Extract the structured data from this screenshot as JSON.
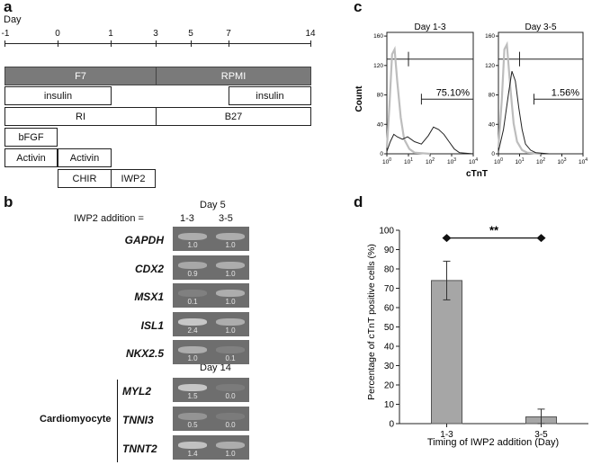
{
  "panel_a": {
    "letter": "a",
    "axis_label": "Day",
    "ticks": [
      "-1",
      "0",
      "1",
      "3",
      "5",
      "7",
      "14"
    ],
    "media": {
      "f7": "F7",
      "rpmi": "RPMI"
    },
    "insulin_early": "insulin",
    "insulin_late": "insulin",
    "ri": "RI",
    "b27": "B27",
    "bfgf": "bFGF",
    "activin_1": "Activin",
    "activin_2": "Activin",
    "chir": "CHIR",
    "iwp2": "IWP2"
  },
  "panel_b": {
    "letter": "b",
    "day5_label": "Day 5",
    "day14_label": "Day 14",
    "addition_label": "IWP2 addition =",
    "col_1": "1-3",
    "col_2": "3-5",
    "cardio_label": "Cardiomyocyte",
    "rows": [
      {
        "gene": "GAPDH",
        "v1": "1.0",
        "v2": "1.0"
      },
      {
        "gene": "CDX2",
        "v1": "0.9",
        "v2": "1.0"
      },
      {
        "gene": "MSX1",
        "v1": "0.1",
        "v2": "1.0"
      },
      {
        "gene": "ISL1",
        "v1": "2.4",
        "v2": "1.0"
      },
      {
        "gene": "NKX2.5",
        "v1": "1.0",
        "v2": "0.1"
      },
      {
        "gene": "MYL2",
        "v1": "1.5",
        "v2": "0.0"
      },
      {
        "gene": "TNNI3",
        "v1": "0.5",
        "v2": "0.0"
      },
      {
        "gene": "TNNT2",
        "v1": "1.4",
        "v2": "1.0"
      }
    ]
  },
  "panel_c": {
    "letter": "c",
    "ylabel": "Count",
    "xlabel": "cTnT",
    "plot1_title": "Day 1-3",
    "plot1_pct": "75.10%",
    "plot2_title": "Day 3-5",
    "plot2_pct": "1.56%",
    "yticks": [
      "0",
      "40",
      "80",
      "120",
      "160"
    ],
    "xticks_exp": [
      "0",
      "1",
      "2",
      "3",
      "4"
    ],
    "xtick_base": "10"
  },
  "panel_d": {
    "letter": "d",
    "significance": "**",
    "bar_color": "#a6a6a6",
    "chart_data": {
      "type": "bar",
      "categories": [
        "1-3",
        "3-5"
      ],
      "values": [
        74,
        3.5
      ],
      "errors": [
        10,
        4
      ],
      "ylabel": "Percentage of cTnT positive cells (%)",
      "xlabel": "Timing of IWP2 addition (Day)",
      "ylim": [
        0,
        100
      ],
      "yticks": [
        0,
        10,
        20,
        30,
        40,
        50,
        60,
        70,
        80,
        90,
        100
      ],
      "grid": false
    }
  }
}
